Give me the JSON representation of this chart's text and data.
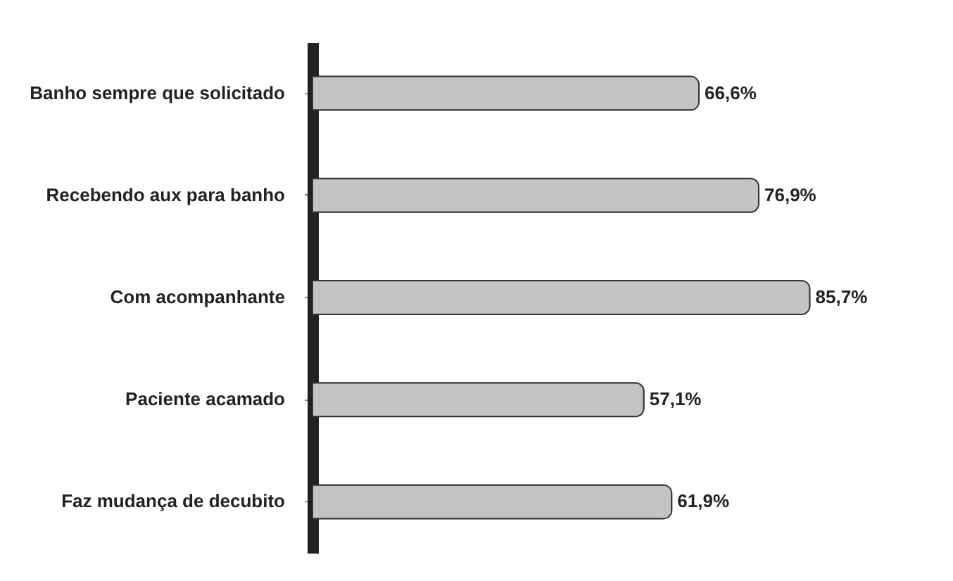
{
  "chart_data": {
    "type": "bar",
    "orientation": "horizontal",
    "categories": [
      "Banho sempre que solicitado",
      "Recebendo aux para banho",
      "Com acompanhante",
      "Paciente acamado",
      "Faz mudança de decubito"
    ],
    "values": [
      66.6,
      76.9,
      85.7,
      57.1,
      61.9
    ],
    "value_labels": [
      "66,6%",
      "76,9%",
      "85,7%",
      "57,1%",
      "61,9%"
    ],
    "color": "#c4c4c4"
  }
}
